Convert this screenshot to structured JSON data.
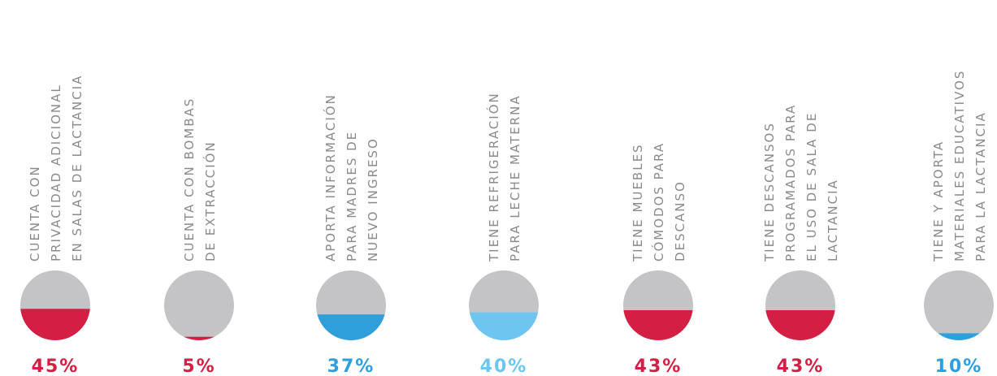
{
  "chart_data": {
    "type": "fill",
    "categories": [
      [
        "CUENTA CON",
        "PRIVACIDAD ADICIONAL",
        "EN SALAS DE LACTANCIA"
      ],
      [
        "CUENTA CON BOMBAS",
        "DE EXTRACCIÓN"
      ],
      [
        "APORTA INFORMACIÓN",
        "PARA MADRES DE",
        "NUEVO INGRESO"
      ],
      [
        "TIENE REFRIGERACIÓN",
        "PARA LECHE MATERNA"
      ],
      [
        "TIENE MUEBLES",
        "CÓMODOS PARA",
        "DESCANSO"
      ],
      [
        "TIENE DESCANSOS",
        "PROGRAMADOS PARA",
        "EL USO DE SALA DE",
        "LACTANCIA"
      ],
      [
        "TIENE Y APORTA",
        "MATERIALES EDUCATIVOS",
        "PARA LA LACTANCIA"
      ]
    ],
    "values": [
      45,
      5,
      37,
      40,
      43,
      43,
      10
    ],
    "value_labels": [
      "45%",
      "5%",
      "37%",
      "40%",
      "43%",
      "43%",
      "10%"
    ],
    "colors": [
      "#d41f44",
      "#d41f44",
      "#2f9fdc",
      "#6ec6f0",
      "#d41f44",
      "#d41f44",
      "#2f9fdc"
    ],
    "ylim": [
      0,
      100
    ],
    "background_color": "#c4c4c6"
  }
}
